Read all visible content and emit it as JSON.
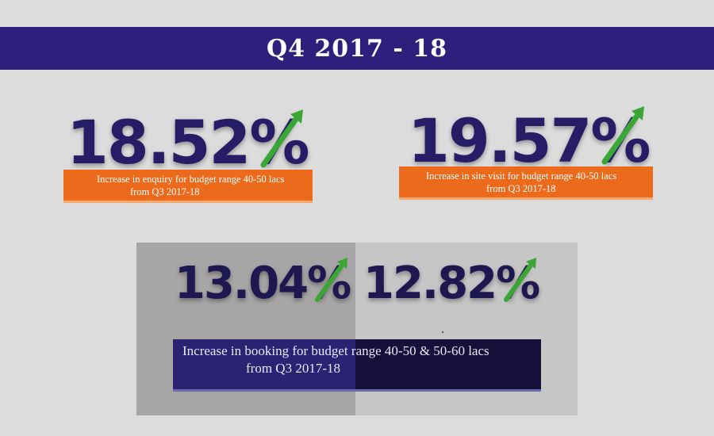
{
  "header": {
    "title": "Q4 2017 - 18"
  },
  "stats": [
    {
      "value": "18.52%",
      "caption_line1": "Increase in enquiry for budget range 40-50 lacs",
      "caption_line2": "from  Q3 2017-18"
    },
    {
      "value": "19.57%",
      "caption_line1": "Increase in site visit for budget range 40-50 lacs",
      "caption_line2": "from Q3 2017-18"
    }
  ],
  "booking": {
    "values": [
      "13.04%",
      "12.82%"
    ],
    "caption_line1": "Increase in booking for budget range 40-50 & 50-60 lacs",
    "caption_line2": "from  Q3 2017-18"
  },
  "colors": {
    "banner": "#2e1f7c",
    "number": "#271c66",
    "caption_box": "#ec6a1b",
    "arrow": "#3aa635",
    "booking_box": "#2c2274"
  },
  "icons": {
    "trend": "up-arrow-icon"
  }
}
